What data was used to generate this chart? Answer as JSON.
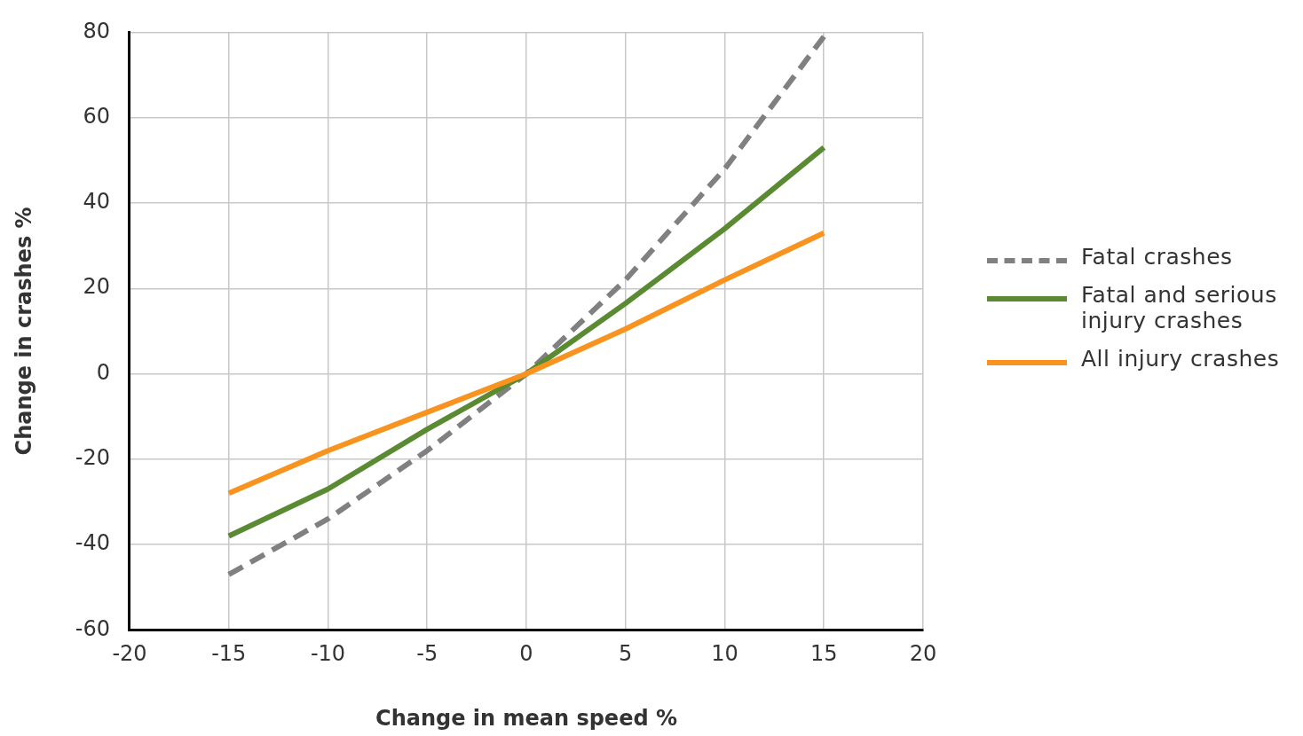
{
  "chart_data": {
    "type": "line",
    "xlabel": "Change in mean speed %",
    "ylabel": "Change in crashes %",
    "x": [
      -15,
      -10,
      -5,
      0,
      5,
      10,
      15
    ],
    "series": [
      {
        "name": "Fatal crashes",
        "color": "#808080",
        "line_style": "dashed",
        "values": [
          -47,
          -34,
          -18,
          0,
          22,
          48,
          79
        ]
      },
      {
        "name": "Fatal and serious injury crashes",
        "color": "#5a8a32",
        "values": [
          -38,
          -27,
          -13,
          0,
          16.5,
          34,
          53
        ]
      },
      {
        "name": "All injury crashes",
        "color": "#f7931e",
        "values": [
          -28,
          -18,
          -9,
          0,
          10.5,
          22,
          33
        ]
      }
    ],
    "xlim": [
      -20,
      20
    ],
    "xticks": [
      -20,
      -15,
      -10,
      -5,
      0,
      5,
      10,
      15,
      20
    ],
    "ylim": [
      -60,
      80
    ],
    "yticks": [
      -60,
      -40,
      -20,
      0,
      20,
      40,
      60,
      80
    ],
    "grid": true,
    "legend": "right",
    "marker": "none",
    "line_style": "solid"
  }
}
